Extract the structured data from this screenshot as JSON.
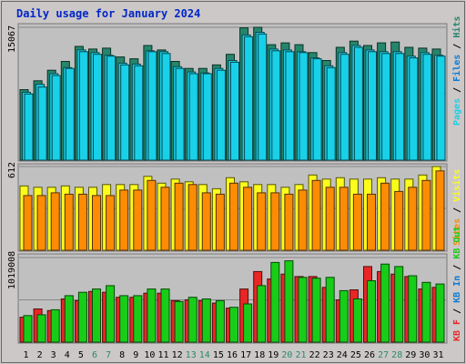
{
  "chart_data": {
    "type": "bar",
    "title": "Daily usage for January 2024",
    "categories": [
      "1",
      "2",
      "3",
      "4",
      "5",
      "6",
      "7",
      "8",
      "9",
      "10",
      "11",
      "12",
      "13",
      "14",
      "15",
      "16",
      "17",
      "18",
      "19",
      "20",
      "21",
      "22",
      "23",
      "24",
      "25",
      "26",
      "27",
      "28",
      "29",
      "30",
      "31"
    ],
    "weekend_days": [
      "6",
      "7",
      "13",
      "14",
      "20",
      "21",
      "27",
      "28"
    ],
    "panels": [
      {
        "id": "top",
        "max_label": "15067",
        "ylim": [
          0,
          15067
        ],
        "legend": [
          "Pages",
          "Files",
          "Hits"
        ],
        "series": [
          {
            "name": "Hits",
            "color": "#26866c",
            "values": [
              8000,
              9000,
              10200,
              11200,
              12900,
              12600,
              12700,
              11700,
              11500,
              13000,
              12500,
              11200,
              10400,
              10400,
              10800,
              12000,
              15000,
              15067,
              13100,
              13300,
              13100,
              12200,
              11300,
              12800,
              13500,
              13000,
              13300,
              13400,
              12800,
              12700,
              12600
            ]
          },
          {
            "name": "Files",
            "color": "#18d1e8",
            "values": [
              7700,
              8600,
              9800,
              10500,
              12500,
              12200,
              11900,
              11000,
              10900,
              12400,
              12300,
              10600,
              10000,
              9900,
              10400,
              11300,
              14200,
              14500,
              12600,
              12500,
              12300,
              11600,
              10700,
              12200,
              13000,
              12500,
              12300,
              12300,
              11800,
              12200,
              11900
            ]
          },
          {
            "name": "Pages",
            "color": "#18d1e8",
            "values": [
              7500,
              8300,
              9600,
              10400,
              12300,
              12000,
              11800,
              10800,
              10700,
              12300,
              12100,
              10400,
              9800,
              9800,
              10200,
              11100,
              14000,
              14300,
              12400,
              12300,
              12200,
              11500,
              10500,
              12000,
              12800,
              12300,
              12100,
              12100,
              11600,
              12000,
              11800
            ]
          }
        ]
      },
      {
        "id": "middle",
        "max_label": "612",
        "ylim": [
          0,
          612
        ],
        "legend": [
          "Visits",
          "Sites"
        ],
        "series": [
          {
            "name": "Visits",
            "color": "#fcfc1c",
            "values": [
              470,
              460,
              460,
              470,
              460,
              460,
              480,
              480,
              480,
              540,
              490,
              520,
              500,
              480,
              450,
              530,
              500,
              480,
              480,
              460,
              480,
              550,
              520,
              530,
              520,
              520,
              530,
              520,
              520,
              550,
              612
            ]
          },
          {
            "name": "Sites",
            "color": "#fc8c04",
            "values": [
              400,
              400,
              420,
              410,
              410,
              400,
              400,
              440,
              440,
              510,
              460,
              490,
              480,
              420,
              410,
              490,
              460,
              420,
              420,
              410,
              440,
              510,
              460,
              460,
              410,
              410,
              490,
              430,
              460,
              510,
              580
            ]
          }
        ]
      },
      {
        "id": "bottom",
        "max_label": "1019008",
        "ylim": [
          0,
          1019008
        ],
        "legend": [
          "KB F",
          "KB In",
          "KB Out"
        ],
        "series": [
          {
            "name": "KB F",
            "color": "#e82626",
            "values": [
              300000,
              400000,
              380000,
              520000,
              500000,
              610000,
              600000,
              540000,
              540000,
              590000,
              590000,
              500000,
              510000,
              500000,
              470000,
              410000,
              640000,
              850000,
              760000,
              820000,
              790000,
              790000,
              660000,
              510000,
              630000,
              910000,
              850000,
              820000,
              790000,
              640000,
              660000
            ]
          },
          {
            "name": "KB Out",
            "color": "#18cd18",
            "values": [
              320000,
              330000,
              390000,
              560000,
              600000,
              640000,
              680000,
              560000,
              560000,
              640000,
              640000,
              490000,
              540000,
              520000,
              500000,
              420000,
              460000,
              680000,
              960000,
              980000,
              780000,
              770000,
              780000,
              620000,
              520000,
              740000,
              940000,
              910000,
              800000,
              720000,
              700000
            ]
          }
        ]
      }
    ]
  }
}
